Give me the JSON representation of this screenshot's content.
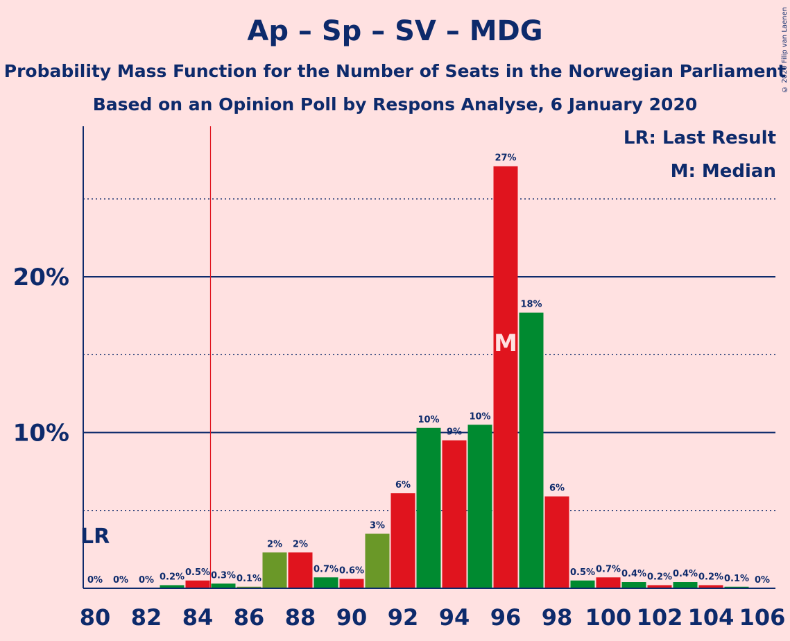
{
  "header": {
    "title": "Ap – Sp – SV – MDG",
    "subtitle1": "Probability Mass Function for the Number of Seats in the Norwegian Parliament",
    "subtitle2": "Based on an Opinion Poll by Respons Analyse, 6 January 2020",
    "copyright": "© 2020 Filip van Laenen"
  },
  "legend": {
    "last_result": "LR: Last Result",
    "median": "M: Median"
  },
  "chart_data": {
    "type": "bar",
    "title": "Ap – Sp – SV – MDG",
    "seats": [
      80,
      81,
      82,
      83,
      84,
      85,
      86,
      87,
      88,
      89,
      90,
      91,
      92,
      93,
      94,
      95,
      96,
      97,
      98,
      99,
      100,
      101,
      102,
      103,
      104,
      105,
      106
    ],
    "values": [
      0,
      0,
      0,
      0.2,
      0.5,
      0.3,
      0.1,
      2.3,
      2.3,
      0.7,
      0.6,
      3.5,
      6.1,
      10.3,
      9.5,
      10.5,
      27.1,
      17.7,
      5.9,
      0.5,
      0.7,
      0.4,
      0.2,
      0.4,
      0.2,
      0.1,
      0
    ],
    "labels": [
      "0%",
      "0%",
      "0%",
      "0.2%",
      "0.5%",
      "0.3%",
      "0.1%",
      "2%",
      "2%",
      "0.7%",
      "0.6%",
      "3%",
      "6%",
      "10%",
      "9%",
      "10%",
      "27%",
      "18%",
      "6%",
      "0.5%",
      "0.7%",
      "0.4%",
      "0.2%",
      "0.4%",
      "0.2%",
      "0.1%",
      "0%"
    ],
    "x_tick_labels": [
      "80",
      "82",
      "84",
      "86",
      "88",
      "90",
      "92",
      "94",
      "96",
      "98",
      "100",
      "102",
      "104",
      "106"
    ],
    "y_tick_labels": [
      "10%",
      "20%"
    ],
    "ylim": [
      0,
      29.5
    ],
    "last_result_seat": 84.5,
    "last_result_label": "LR",
    "median_seat": 96,
    "median_label": "M",
    "colors": {
      "red": "#e0141e",
      "green": "#008a30",
      "olive": "#6a9828",
      "axis": "#0d2a6b",
      "lr_line": "#e0141e",
      "background": "#ffe1e1"
    },
    "bar_colors": [
      "red",
      "green",
      "olive",
      "green",
      "red",
      "green",
      "olive",
      "olive",
      "red",
      "green",
      "red",
      "olive",
      "red",
      "green",
      "red",
      "green",
      "red",
      "green",
      "red",
      "green",
      "red",
      "green",
      "red",
      "green",
      "red",
      "green",
      "olive"
    ]
  }
}
